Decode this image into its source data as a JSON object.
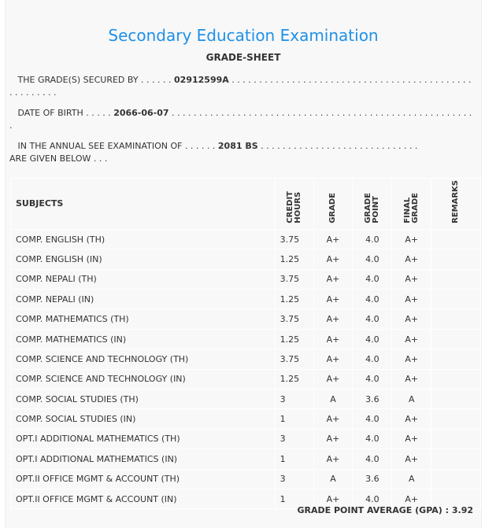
{
  "title": "Secondary Education Examination",
  "subtitle": "GRADE-SHEET",
  "secured_by": {
    "label": "THE GRADE(S) SECURED BY . . . . . . ",
    "value": "02912599A",
    "dots": " . . . . . . . . . . . . . . . . . . . . . . . . . . . . . . . . . . . . . . . . . . . . . . . . . . . . ."
  },
  "dob": {
    "label": "DATE OF BIRTH . . . . . ",
    "value": "2066-06-07",
    "dots": " . . . . . . . . . . . . . . . . . . . . . . . . . . . . . . . . . . . . . . . . . . . . . . . . . . . . . . . ."
  },
  "exam": {
    "label": "IN THE ANNUAL SEE EXAMINATION OF . . . . . . ",
    "value": "2081 BS",
    "dots": " . . . . . . . . . . . . . . . . . . . . . . . . . . . . .",
    "tail": "ARE GIVEN BELOW . . ."
  },
  "headers": {
    "subjects": "SUBJECTS",
    "credit": "CREDIT\nHOURS",
    "grade": "GRADE",
    "point": "GRADE\nPOINT",
    "final": "FINAL\nGRADE",
    "remarks": "REMARKS"
  },
  "rows": [
    {
      "subject": "COMP. ENGLISH (TH)",
      "credit": "3.75",
      "grade": "A+",
      "point": "4.0",
      "final": "A+"
    },
    {
      "subject": "COMP. ENGLISH (IN)",
      "credit": "1.25",
      "grade": "A+",
      "point": "4.0",
      "final": "A+"
    },
    {
      "subject": "COMP. NEPALI (TH)",
      "credit": "3.75",
      "grade": "A+",
      "point": "4.0",
      "final": "A+"
    },
    {
      "subject": "COMP. NEPALI (IN)",
      "credit": "1.25",
      "grade": "A+",
      "point": "4.0",
      "final": "A+"
    },
    {
      "subject": "COMP. MATHEMATICS (TH)",
      "credit": "3.75",
      "grade": "A+",
      "point": "4.0",
      "final": "A+"
    },
    {
      "subject": "COMP. MATHEMATICS (IN)",
      "credit": "1.25",
      "grade": "A+",
      "point": "4.0",
      "final": "A+"
    },
    {
      "subject": "COMP. SCIENCE AND TECHNOLOGY (TH)",
      "credit": "3.75",
      "grade": "A+",
      "point": "4.0",
      "final": "A+"
    },
    {
      "subject": "COMP. SCIENCE AND TECHNOLOGY (IN)",
      "credit": "1.25",
      "grade": "A+",
      "point": "4.0",
      "final": "A+"
    },
    {
      "subject": "COMP. SOCIAL STUDIES (TH)",
      "credit": "3",
      "grade": "A",
      "point": "3.6",
      "final": "A"
    },
    {
      "subject": "COMP. SOCIAL STUDIES (IN)",
      "credit": "1",
      "grade": "A+",
      "point": "4.0",
      "final": "A+"
    },
    {
      "subject": "OPT.I ADDITIONAL MATHEMATICS (TH)",
      "credit": "3",
      "grade": "A+",
      "point": "4.0",
      "final": "A+"
    },
    {
      "subject": "OPT.I ADDITIONAL MATHEMATICS (IN)",
      "credit": "1",
      "grade": "A+",
      "point": "4.0",
      "final": "A+"
    },
    {
      "subject": "OPT.II OFFICE MGMT & ACCOUNT (TH)",
      "credit": "3",
      "grade": "A",
      "point": "3.6",
      "final": "A"
    },
    {
      "subject": "OPT.II OFFICE MGMT & ACCOUNT (IN)",
      "credit": "1",
      "grade": "A+",
      "point": "4.0",
      "final": "A+"
    }
  ],
  "gpa": "GRADE POINT AVERAGE (GPA) : 3.92"
}
